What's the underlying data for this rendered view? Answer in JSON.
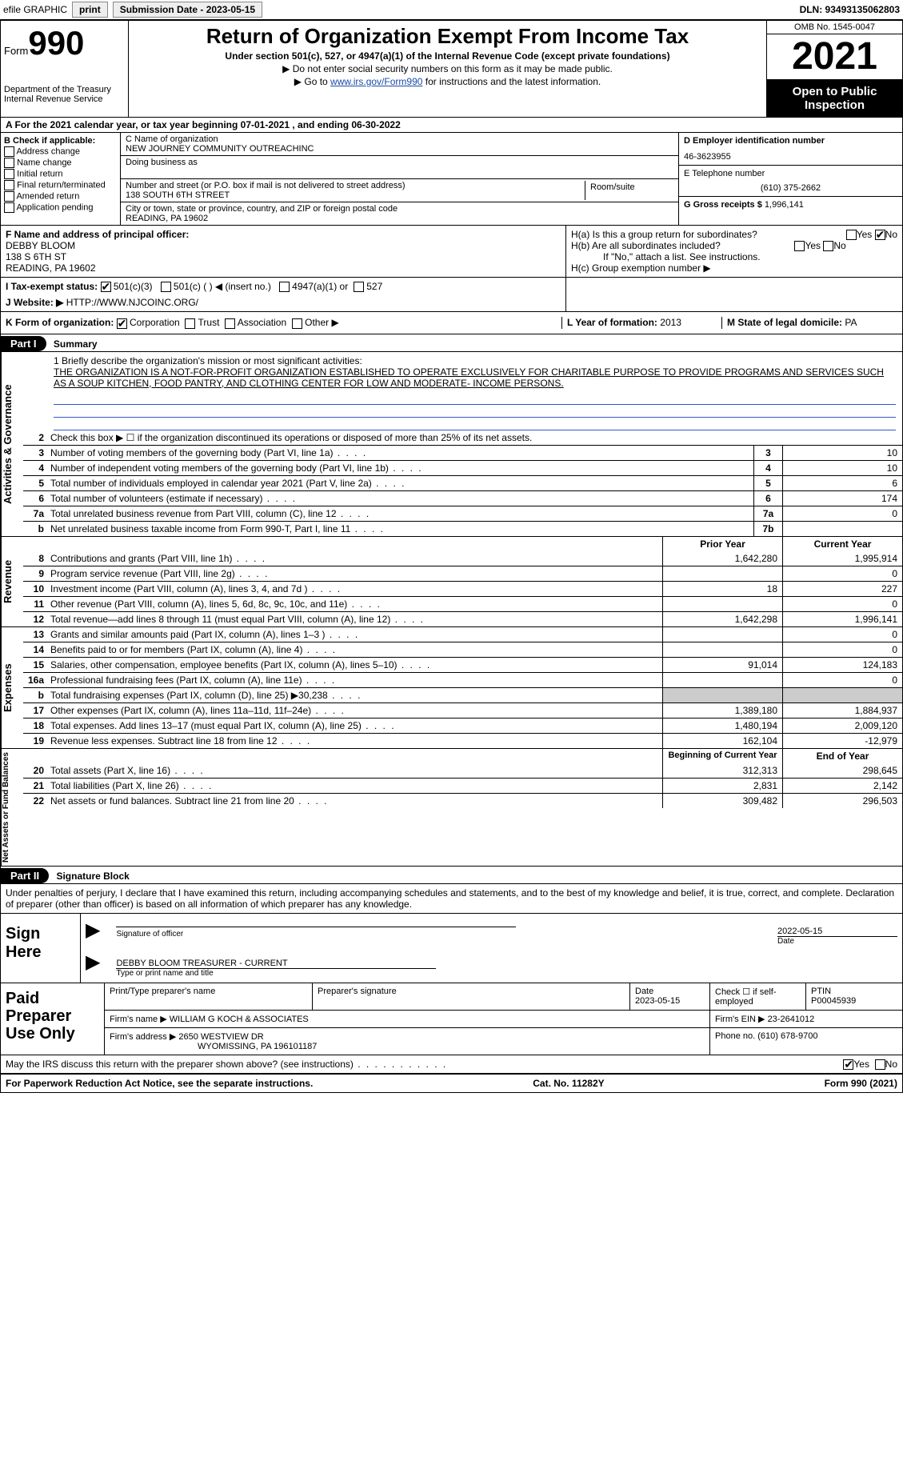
{
  "topbar": {
    "efile": "efile GRAPHIC",
    "print": "print",
    "sub_label": "Submission Date - 2023-05-15",
    "dln": "DLN: 93493135062803"
  },
  "header": {
    "form_word": "Form",
    "form_num": "990",
    "dept": "Department of the Treasury",
    "irs": "Internal Revenue Service",
    "title": "Return of Organization Exempt From Income Tax",
    "subtitle": "Under section 501(c), 527, or 4947(a)(1) of the Internal Revenue Code (except private foundations)",
    "note1": "▶ Do not enter social security numbers on this form as it may be made public.",
    "note2_pre": "▶ Go to ",
    "note2_link": "www.irs.gov/Form990",
    "note2_post": " for instructions and the latest information.",
    "omb": "OMB No. 1545-0047",
    "year": "2021",
    "open": "Open to Public Inspection"
  },
  "row_a": "A For the 2021 calendar year, or tax year beginning 07-01-2021    , and ending 06-30-2022",
  "col_b": {
    "title": "B Check if applicable:",
    "items": [
      "Address change",
      "Name change",
      "Initial return",
      "Final return/terminated",
      "Amended return",
      "Application pending"
    ]
  },
  "col_c": {
    "name_lbl": "C Name of organization",
    "name": "NEW JOURNEY COMMUNITY OUTREACHINC",
    "dba": "Doing business as",
    "addr_lbl": "Number and street (or P.O. box if mail is not delivered to street address)",
    "room_lbl": "Room/suite",
    "addr": "138 SOUTH 6TH STREET",
    "city_lbl": "City or town, state or province, country, and ZIP or foreign postal code",
    "city": "READING, PA  19602"
  },
  "col_d": {
    "ein_lbl": "D Employer identification number",
    "ein": "46-3623955",
    "tel_lbl": "E Telephone number",
    "tel": "(610) 375-2662",
    "gross_lbl": "G Gross receipts $",
    "gross": "1,996,141"
  },
  "row_f": {
    "lbl": "F Name and address of principal officer:",
    "name": "DEBBY BLOOM",
    "addr1": "138 S 6TH ST",
    "addr2": "READING, PA  19602"
  },
  "row_h": {
    "ha": "H(a)  Is this a group return for subordinates?",
    "hb": "H(b)  Are all subordinates included?",
    "hb_note": "If \"No,\" attach a list. See instructions.",
    "hc": "H(c)  Group exemption number ▶",
    "yes": "Yes",
    "no": "No"
  },
  "row_i": {
    "lbl": "I    Tax-exempt status:",
    "o1": "501(c)(3)",
    "o2": "501(c) (  ) ◀ (insert no.)",
    "o3": "4947(a)(1) or",
    "o4": "527"
  },
  "row_j": {
    "lbl": "J   Website: ▶",
    "val": "HTTP://WWW.NJCOINC.ORG/"
  },
  "row_k": {
    "lbl": "K Form of organization:",
    "o1": "Corporation",
    "o2": "Trust",
    "o3": "Association",
    "o4": "Other ▶",
    "l_lbl": "L Year of formation:",
    "l_val": "2013",
    "m_lbl": "M State of legal domicile:",
    "m_val": "PA"
  },
  "part1": {
    "num": "Part I",
    "title": "Summary"
  },
  "mission": {
    "lead": "1   Briefly describe the organization's mission or most significant activities:",
    "text": "THE ORGANIZATION IS A NOT-FOR-PROFIT ORGANIZATION ESTABLISHED TO OPERATE EXCLUSIVELY FOR CHARITABLE PURPOSE TO PROVIDE PROGRAMS AND SERVICES SUCH AS A SOUP KITCHEN, FOOD PANTRY, AND CLOTHING CENTER FOR LOW AND MODERATE- INCOME PERSONS."
  },
  "gov_lines": [
    {
      "n": "2",
      "d": "Check this box ▶ ☐ if the organization discontinued its operations or disposed of more than 25% of its net assets.",
      "box": "",
      "v": ""
    },
    {
      "n": "3",
      "d": "Number of voting members of the governing body (Part VI, line 1a)",
      "box": "3",
      "v": "10"
    },
    {
      "n": "4",
      "d": "Number of independent voting members of the governing body (Part VI, line 1b)",
      "box": "4",
      "v": "10"
    },
    {
      "n": "5",
      "d": "Total number of individuals employed in calendar year 2021 (Part V, line 2a)",
      "box": "5",
      "v": "6"
    },
    {
      "n": "6",
      "d": "Total number of volunteers (estimate if necessary)",
      "box": "6",
      "v": "174"
    },
    {
      "n": "7a",
      "d": "Total unrelated business revenue from Part VIII, column (C), line 12",
      "box": "7a",
      "v": "0"
    },
    {
      "n": "b",
      "d": "Net unrelated business taxable income from Form 990-T, Part I, line 11",
      "box": "7b",
      "v": ""
    }
  ],
  "rev_hdr": {
    "prior": "Prior Year",
    "curr": "Current Year"
  },
  "rev_lines": [
    {
      "n": "8",
      "d": "Contributions and grants (Part VIII, line 1h)",
      "p": "1,642,280",
      "c": "1,995,914"
    },
    {
      "n": "9",
      "d": "Program service revenue (Part VIII, line 2g)",
      "p": "",
      "c": "0"
    },
    {
      "n": "10",
      "d": "Investment income (Part VIII, column (A), lines 3, 4, and 7d )",
      "p": "18",
      "c": "227"
    },
    {
      "n": "11",
      "d": "Other revenue (Part VIII, column (A), lines 5, 6d, 8c, 9c, 10c, and 11e)",
      "p": "",
      "c": "0"
    },
    {
      "n": "12",
      "d": "Total revenue—add lines 8 through 11 (must equal Part VIII, column (A), line 12)",
      "p": "1,642,298",
      "c": "1,996,141"
    }
  ],
  "exp_lines": [
    {
      "n": "13",
      "d": "Grants and similar amounts paid (Part IX, column (A), lines 1–3 )",
      "p": "",
      "c": "0"
    },
    {
      "n": "14",
      "d": "Benefits paid to or for members (Part IX, column (A), line 4)",
      "p": "",
      "c": "0"
    },
    {
      "n": "15",
      "d": "Salaries, other compensation, employee benefits (Part IX, column (A), lines 5–10)",
      "p": "91,014",
      "c": "124,183"
    },
    {
      "n": "16a",
      "d": "Professional fundraising fees (Part IX, column (A), line 11e)",
      "p": "",
      "c": "0"
    },
    {
      "n": "b",
      "d": "Total fundraising expenses (Part IX, column (D), line 25) ▶30,238",
      "p": "shade",
      "c": "shade"
    },
    {
      "n": "17",
      "d": "Other expenses (Part IX, column (A), lines 11a–11d, 11f–24e)",
      "p": "1,389,180",
      "c": "1,884,937"
    },
    {
      "n": "18",
      "d": "Total expenses. Add lines 13–17 (must equal Part IX, column (A), line 25)",
      "p": "1,480,194",
      "c": "2,009,120"
    },
    {
      "n": "19",
      "d": "Revenue less expenses. Subtract line 18 from line 12",
      "p": "162,104",
      "c": "-12,979"
    }
  ],
  "net_hdr": {
    "beg": "Beginning of Current Year",
    "end": "End of Year"
  },
  "net_lines": [
    {
      "n": "20",
      "d": "Total assets (Part X, line 16)",
      "p": "312,313",
      "c": "298,645"
    },
    {
      "n": "21",
      "d": "Total liabilities (Part X, line 26)",
      "p": "2,831",
      "c": "2,142"
    },
    {
      "n": "22",
      "d": "Net assets or fund balances. Subtract line 21 from line 20",
      "p": "309,482",
      "c": "296,503"
    }
  ],
  "vlabels": {
    "gov": "Activities & Governance",
    "rev": "Revenue",
    "exp": "Expenses",
    "net": "Net Assets or Fund Balances"
  },
  "part2": {
    "num": "Part II",
    "title": "Signature Block"
  },
  "sig": {
    "decl": "Under penalties of perjury, I declare that I have examined this return, including accompanying schedules and statements, and to the best of my knowledge and belief, it is true, correct, and complete. Declaration of preparer (other than officer) is based on all information of which preparer has any knowledge.",
    "sign_here": "Sign Here",
    "sig_officer": "Signature of officer",
    "date": "Date",
    "date_val": "2022-05-15",
    "name": "DEBBY BLOOM  TREASURER - CURRENT",
    "name_lbl": "Type or print name and title"
  },
  "prep": {
    "lbl": "Paid Preparer Use Only",
    "h1": "Print/Type preparer's name",
    "h2": "Preparer's signature",
    "h3_lbl": "Date",
    "h3": "2023-05-15",
    "h4": "Check ☐ if self-employed",
    "h5_lbl": "PTIN",
    "h5": "P00045939",
    "firm_lbl": "Firm's name    ▶",
    "firm": "WILLIAM G KOCH & ASSOCIATES",
    "ein_lbl": "Firm's EIN ▶",
    "ein": "23-2641012",
    "addr_lbl": "Firm's address ▶",
    "addr1": "2650 WESTVIEW DR",
    "addr2": "WYOMISSING, PA  196101187",
    "phone_lbl": "Phone no.",
    "phone": "(610) 678-9700"
  },
  "discuss": "May the IRS discuss this return with the preparer shown above? (see instructions)",
  "footer": {
    "left": "For Paperwork Reduction Act Notice, see the separate instructions.",
    "mid": "Cat. No. 11282Y",
    "right": "Form 990 (2021)"
  }
}
